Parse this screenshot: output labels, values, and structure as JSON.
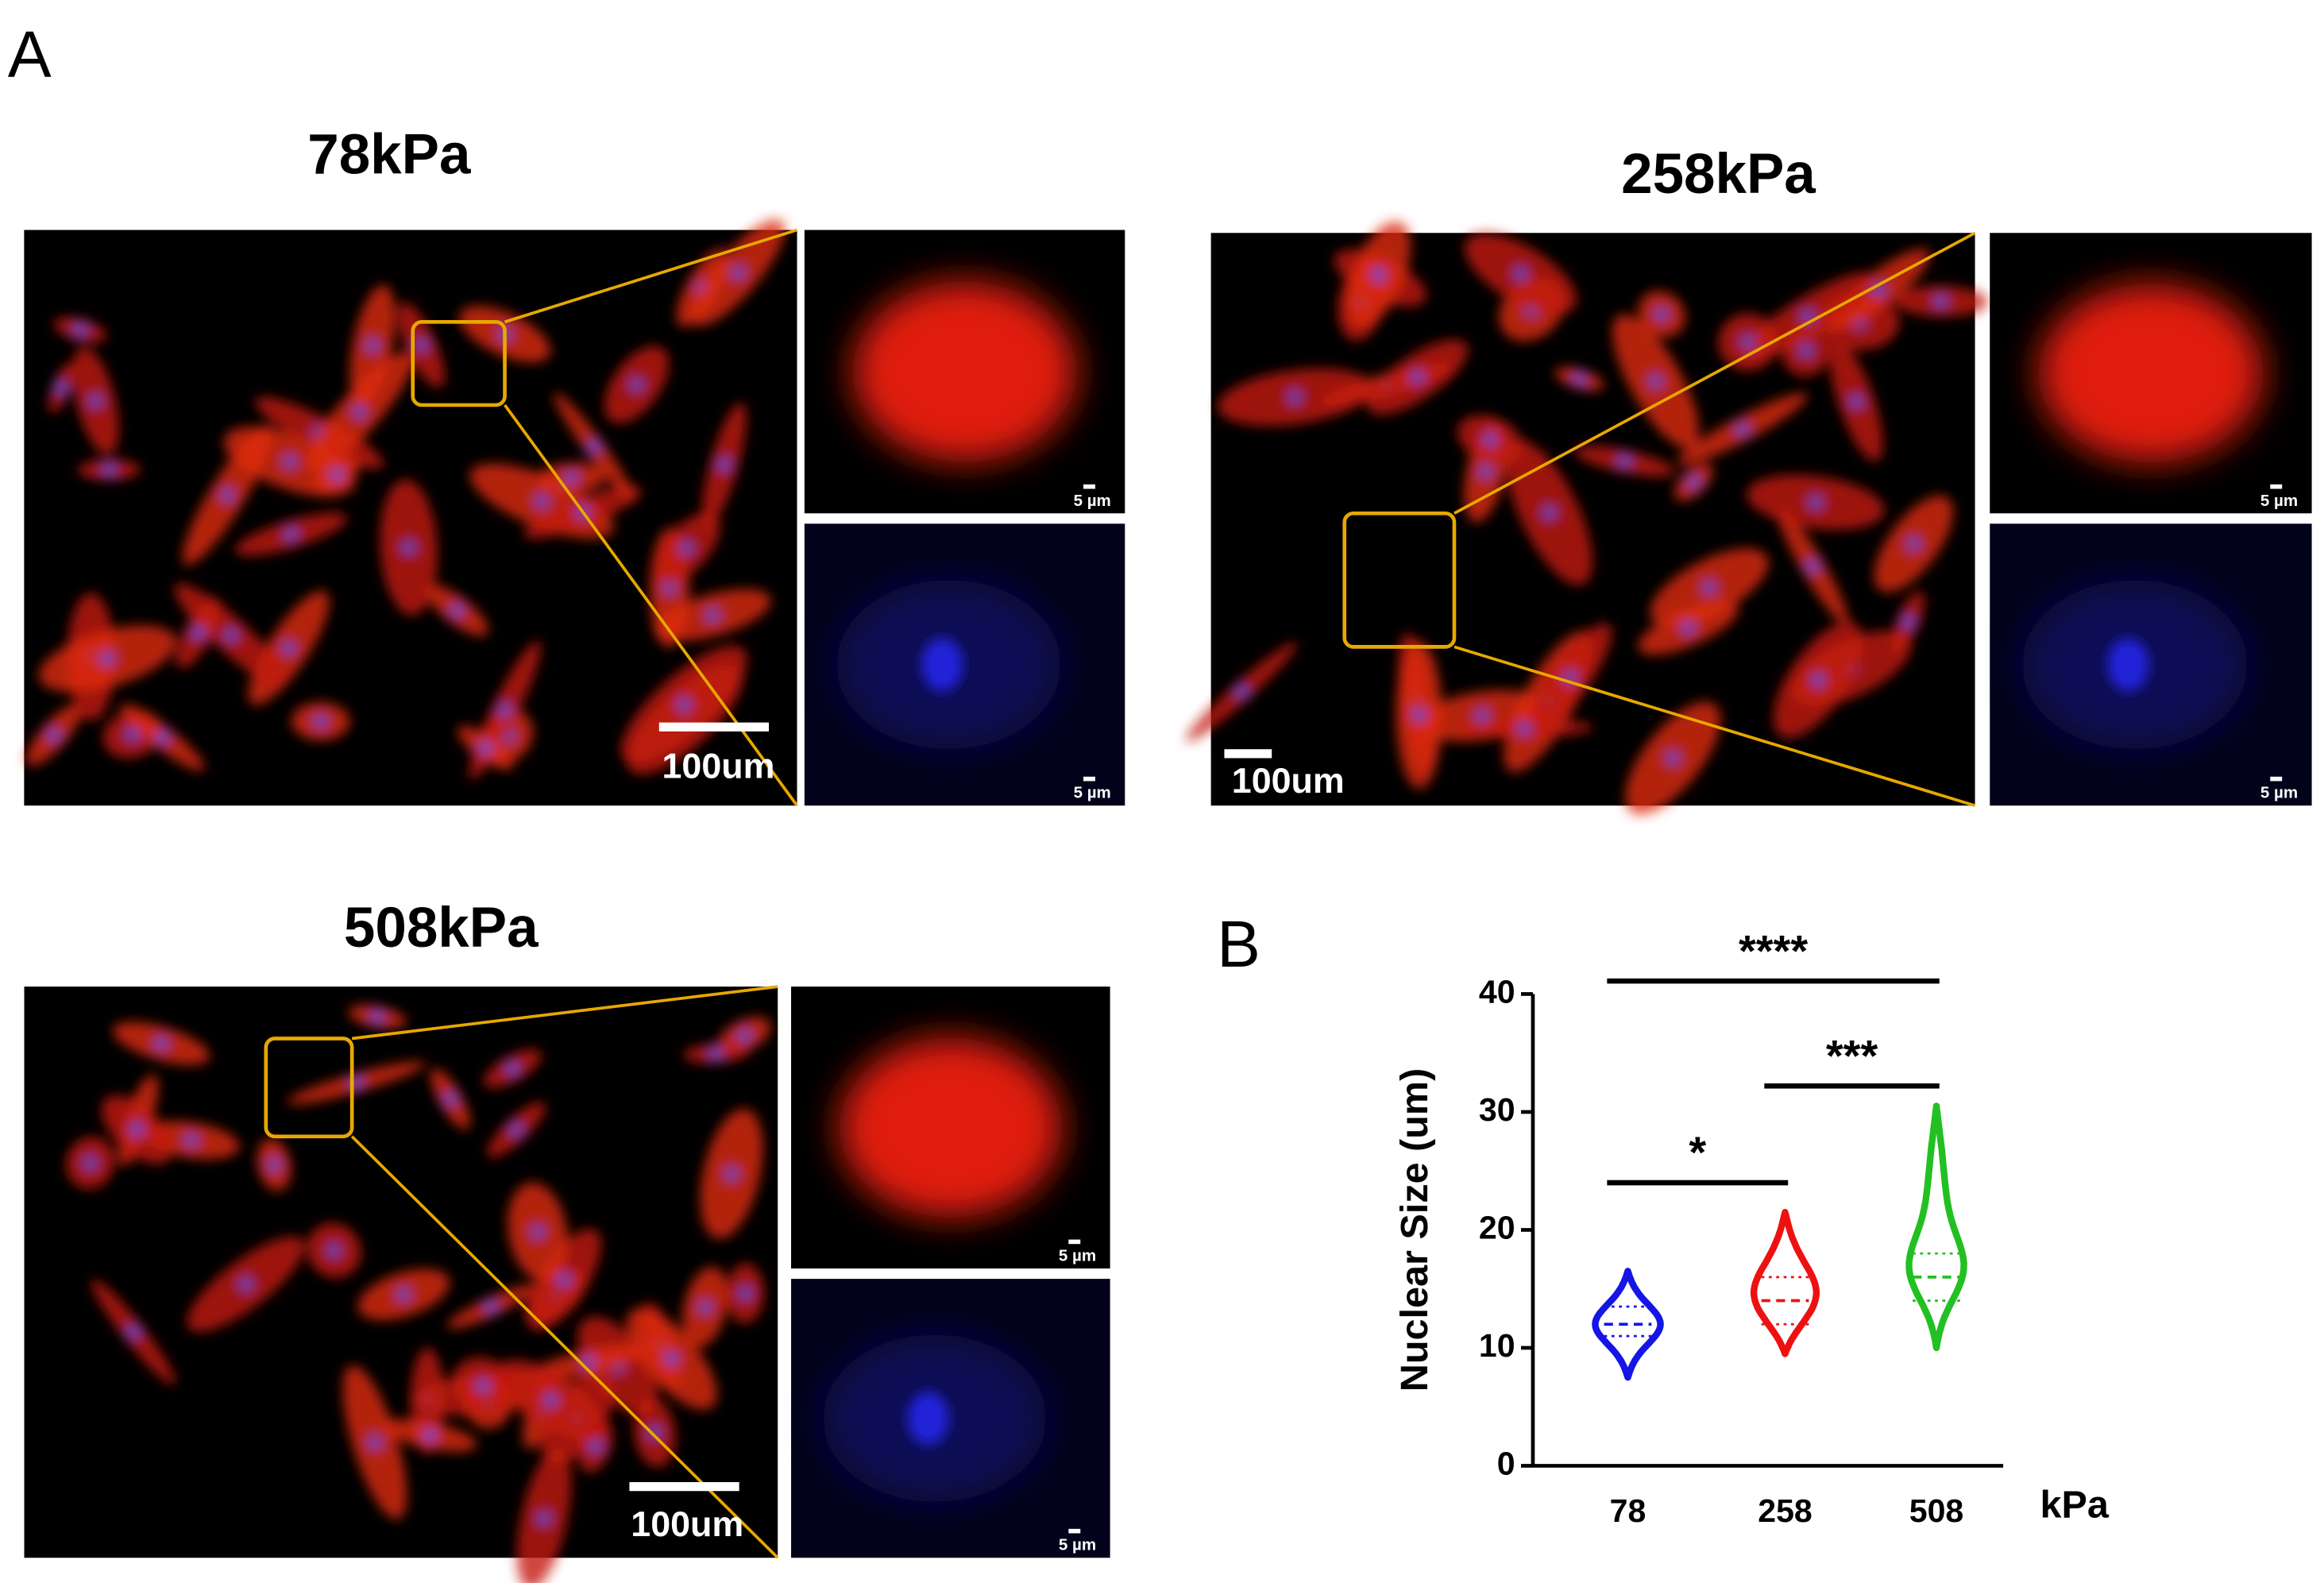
{
  "panel_a": {
    "label": "A",
    "images": [
      {
        "title": "78kPa",
        "scale_bar": "100um",
        "inset_scale": "5 µm"
      },
      {
        "title": "258kPa",
        "scale_bar": "100um",
        "inset_scale": "5 µm"
      },
      {
        "title": "508kPa",
        "scale_bar": "100um",
        "inset_scale": "5 µm"
      }
    ]
  },
  "panel_b": {
    "label": "B"
  },
  "chart_data": {
    "type": "violin",
    "ylabel": "Nuclear Size (um)",
    "xlabel": "kPa",
    "categories": [
      "78",
      "258",
      "508"
    ],
    "groups": [
      {
        "color": "#1515e6",
        "min": 7.5,
        "q1": 11,
        "median": 12,
        "q3": 13.5,
        "max": 16.5
      },
      {
        "color": "#ee1111",
        "min": 9.5,
        "q1": 12,
        "median": 14,
        "q3": 16,
        "max": 21.5
      },
      {
        "color": "#22c022",
        "min": 10,
        "q1": 14,
        "median": 16,
        "q3": 18,
        "max": 30.5
      }
    ],
    "ylim": [
      0,
      40
    ],
    "yticks": [
      0,
      10,
      20,
      30,
      40
    ],
    "annotations": [
      {
        "text": "****",
        "from": "78",
        "to": "508",
        "y": 41.1
      },
      {
        "text": "***",
        "from": "258",
        "to": "508",
        "y": 32.2
      },
      {
        "text": "*",
        "from": "78",
        "to": "258",
        "y": 24
      }
    ]
  }
}
